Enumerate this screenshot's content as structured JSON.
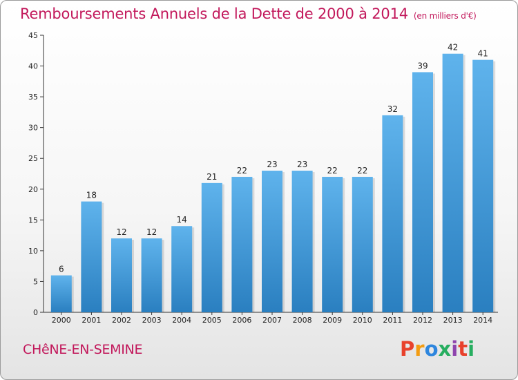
{
  "header": {
    "title": "Remboursements Annuels de la Dette de 2000 à 2014",
    "unit": "(en milliers d'€)"
  },
  "footer": {
    "commune": "CHêNE-EN-SEMINE",
    "brand": "Proxiti"
  },
  "colors": {
    "title": "#c2185b",
    "bar_top": "#5fb3ec",
    "bar_bottom": "#2a7fc0",
    "axis": "#333333",
    "brand_letters": [
      "#e8412c",
      "#f39c12",
      "#2e86de",
      "#27ae60",
      "#8e44ad",
      "#e8412c",
      "#27ae60"
    ]
  },
  "chart_data": {
    "type": "bar",
    "title": "Remboursements Annuels de la Dette de 2000 à 2014",
    "xlabel": "",
    "ylabel": "",
    "ylim": [
      0,
      45
    ],
    "yticks": [
      0,
      5,
      10,
      15,
      20,
      25,
      30,
      35,
      40,
      45
    ],
    "categories": [
      "2000",
      "2001",
      "2002",
      "2003",
      "2004",
      "2005",
      "2006",
      "2007",
      "2008",
      "2009",
      "2010",
      "2011",
      "2012",
      "2013",
      "2014"
    ],
    "values": [
      6,
      18,
      12,
      12,
      14,
      21,
      22,
      23,
      23,
      22,
      22,
      32,
      39,
      42,
      41
    ],
    "grid": false,
    "legend": "none"
  }
}
